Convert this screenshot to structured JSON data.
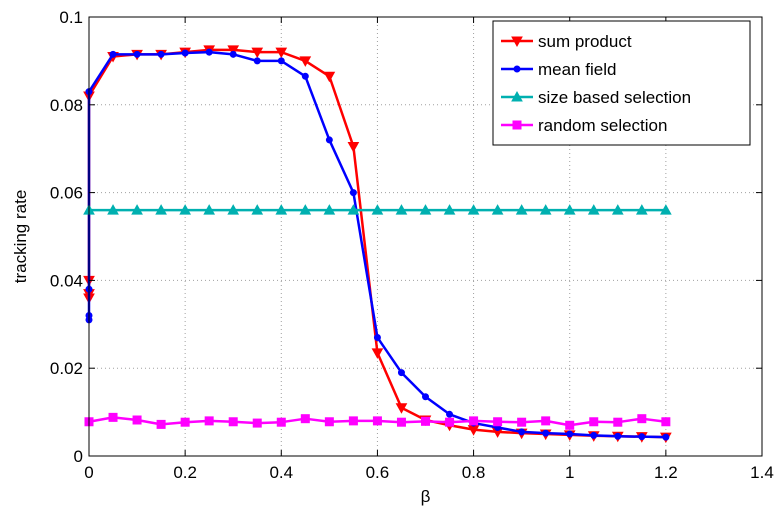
{
  "chart_data": {
    "type": "line",
    "title": "",
    "xlabel": "β",
    "ylabel": "tracking rate",
    "xlim": [
      0,
      1.4
    ],
    "ylim": [
      0,
      0.1
    ],
    "xticks": [
      "0",
      "0.2",
      "0.4",
      "0.6",
      "0.8",
      "1",
      "1.2",
      "1.4"
    ],
    "yticks": [
      "0",
      "0.02",
      "0.04",
      "0.06",
      "0.08",
      "0.1"
    ],
    "grid": true,
    "legend_position": "top-right",
    "series": [
      {
        "name": "sum product",
        "color": "#ff0000",
        "marker": "triangle-down",
        "x": [
          0,
          0,
          0,
          0,
          0.05,
          0.1,
          0.15,
          0.2,
          0.25,
          0.3,
          0.35,
          0.4,
          0.45,
          0.5,
          0.55,
          0.6,
          0.65,
          0.7,
          0.75,
          0.8,
          0.85,
          0.9,
          0.95,
          1.0,
          1.05,
          1.1,
          1.15,
          1.2
        ],
        "y": [
          0.036,
          0.04,
          0.037,
          0.082,
          0.091,
          0.0915,
          0.0915,
          0.092,
          0.0925,
          0.0925,
          0.092,
          0.092,
          0.09,
          0.0865,
          0.0705,
          0.0235,
          0.011,
          0.0082,
          0.007,
          0.006,
          0.0055,
          0.0052,
          0.005,
          0.0048,
          0.0046,
          0.0045,
          0.0044,
          0.0043
        ]
      },
      {
        "name": "mean field",
        "color": "#0000ff",
        "marker": "dot",
        "x": [
          0,
          0,
          0,
          0,
          0.05,
          0.1,
          0.15,
          0.2,
          0.25,
          0.3,
          0.35,
          0.4,
          0.45,
          0.5,
          0.55,
          0.6,
          0.65,
          0.7,
          0.75,
          0.8,
          0.85,
          0.9,
          0.95,
          1.0,
          1.05,
          1.1,
          1.15,
          1.2
        ],
        "y": [
          0.031,
          0.032,
          0.038,
          0.083,
          0.0915,
          0.0915,
          0.0915,
          0.0918,
          0.092,
          0.0915,
          0.09,
          0.09,
          0.0865,
          0.072,
          0.06,
          0.027,
          0.019,
          0.0135,
          0.0095,
          0.0075,
          0.0065,
          0.0055,
          0.0052,
          0.005,
          0.0047,
          0.0045,
          0.0044,
          0.0043
        ]
      },
      {
        "name": "size based selection",
        "color": "#00b0b0",
        "marker": "triangle-up",
        "x": [
          0,
          0.05,
          0.1,
          0.15,
          0.2,
          0.25,
          0.3,
          0.35,
          0.4,
          0.45,
          0.5,
          0.55,
          0.6,
          0.65,
          0.7,
          0.75,
          0.8,
          0.85,
          0.9,
          0.95,
          1.0,
          1.05,
          1.1,
          1.15,
          1.2
        ],
        "y": [
          0.056,
          0.056,
          0.056,
          0.056,
          0.056,
          0.056,
          0.056,
          0.056,
          0.056,
          0.056,
          0.056,
          0.056,
          0.056,
          0.056,
          0.056,
          0.056,
          0.056,
          0.056,
          0.056,
          0.056,
          0.056,
          0.056,
          0.056,
          0.056,
          0.056
        ]
      },
      {
        "name": "random selection",
        "color": "#ff00ff",
        "marker": "square",
        "x": [
          0,
          0.05,
          0.1,
          0.15,
          0.2,
          0.25,
          0.3,
          0.35,
          0.4,
          0.45,
          0.5,
          0.55,
          0.6,
          0.65,
          0.7,
          0.75,
          0.8,
          0.85,
          0.9,
          0.95,
          1.0,
          1.05,
          1.1,
          1.15,
          1.2
        ],
        "y": [
          0.0078,
          0.0088,
          0.0082,
          0.0072,
          0.0077,
          0.008,
          0.0078,
          0.0075,
          0.0077,
          0.0085,
          0.0078,
          0.008,
          0.008,
          0.0077,
          0.0079,
          0.0077,
          0.008,
          0.0078,
          0.0077,
          0.008,
          0.007,
          0.0078,
          0.0077,
          0.0085,
          0.0078
        ]
      }
    ]
  }
}
